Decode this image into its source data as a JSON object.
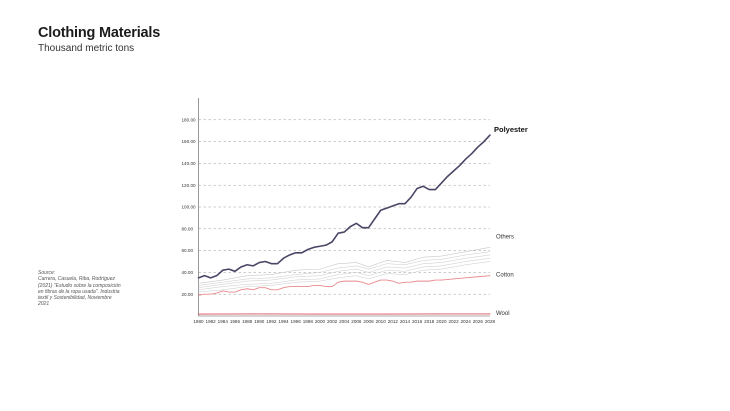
{
  "header": {
    "title": "Clothing Materials",
    "subtitle": "Thousand metric tons"
  },
  "source": {
    "lines": [
      "Source:",
      "Carrera, Casuela, Riba, Rodríguez",
      "(2021) \"Estudio sobre la composición",
      "en fibras de la ropa usada\". Industria",
      "textil y Sostenibilidad, Noviembre",
      "2021"
    ]
  },
  "colors": {
    "polyester": "#4a4766",
    "cotton": "#e8898c",
    "others": "#c9c9c9",
    "wool": "#d94a55",
    "grid": "#9a9a9a",
    "axis": "#555555"
  },
  "chart_data": {
    "type": "line",
    "title": "Clothing Materials",
    "subtitle": "Thousand metric tons",
    "xlabel": "",
    "ylabel": "",
    "ylim": [
      0,
      200
    ],
    "yticks": [
      20,
      40,
      60,
      80,
      100,
      120,
      140,
      160,
      180
    ],
    "ytick_labels": [
      "20.00",
      "40.00",
      "60.00",
      "80.00",
      "100.00",
      "120.00",
      "140.00",
      "160.00",
      "180.00"
    ],
    "xlim": [
      1980,
      2028
    ],
    "xticks": [
      1980,
      1982,
      1984,
      1986,
      1988,
      1990,
      1992,
      1994,
      1996,
      1998,
      2000,
      2002,
      2004,
      2006,
      2008,
      2010,
      2012,
      2014,
      2016,
      2018,
      2020,
      2022,
      2024,
      2026,
      2028
    ],
    "grid": true,
    "series": [
      {
        "name": "Polyester",
        "color_key": "polyester",
        "width": 1.6,
        "points": [
          [
            1980,
            35
          ],
          [
            1981,
            37
          ],
          [
            1982,
            35
          ],
          [
            1983,
            37
          ],
          [
            1984,
            42
          ],
          [
            1985,
            43
          ],
          [
            1986,
            41
          ],
          [
            1987,
            45
          ],
          [
            1988,
            47
          ],
          [
            1989,
            46
          ],
          [
            1990,
            49
          ],
          [
            1991,
            50
          ],
          [
            1992,
            48
          ],
          [
            1993,
            48
          ],
          [
            1994,
            53
          ],
          [
            1995,
            56
          ],
          [
            1996,
            58
          ],
          [
            1997,
            58
          ],
          [
            1998,
            61
          ],
          [
            1999,
            63
          ],
          [
            2000,
            64
          ],
          [
            2001,
            65
          ],
          [
            2002,
            68
          ],
          [
            2003,
            76
          ],
          [
            2004,
            77
          ],
          [
            2005,
            82
          ],
          [
            2006,
            85
          ],
          [
            2007,
            81
          ],
          [
            2008,
            81
          ],
          [
            2009,
            89
          ],
          [
            2010,
            97
          ],
          [
            2011,
            99
          ],
          [
            2012,
            101
          ],
          [
            2013,
            103
          ],
          [
            2014,
            103
          ],
          [
            2015,
            109
          ],
          [
            2016,
            117
          ],
          [
            2017,
            119
          ],
          [
            2018,
            116
          ],
          [
            2019,
            116
          ],
          [
            2020,
            122
          ],
          [
            2021,
            128
          ],
          [
            2022,
            133
          ],
          [
            2023,
            138
          ],
          [
            2024,
            144
          ],
          [
            2025,
            149
          ],
          [
            2026,
            155
          ],
          [
            2027,
            160
          ],
          [
            2028,
            166
          ]
        ]
      },
      {
        "name": "Others",
        "color_key": "others",
        "width": 0.6,
        "points": [
          [
            1980,
            30
          ],
          [
            1984,
            33
          ],
          [
            1988,
            37
          ],
          [
            1992,
            38
          ],
          [
            1996,
            42
          ],
          [
            2000,
            43
          ],
          [
            2003,
            48
          ],
          [
            2006,
            49
          ],
          [
            2008,
            45
          ],
          [
            2011,
            51
          ],
          [
            2014,
            49
          ],
          [
            2017,
            54
          ],
          [
            2020,
            55
          ],
          [
            2024,
            59
          ],
          [
            2028,
            63
          ]
        ]
      },
      {
        "name": "",
        "color_key": "others",
        "width": 0.5,
        "points": [
          [
            1980,
            28
          ],
          [
            1984,
            31
          ],
          [
            1988,
            34
          ],
          [
            1992,
            35
          ],
          [
            1996,
            38
          ],
          [
            2000,
            40
          ],
          [
            2003,
            44
          ],
          [
            2006,
            46
          ],
          [
            2008,
            43
          ],
          [
            2011,
            48
          ],
          [
            2014,
            47
          ],
          [
            2017,
            51
          ],
          [
            2020,
            52
          ],
          [
            2024,
            56
          ],
          [
            2028,
            59
          ]
        ]
      },
      {
        "name": "",
        "color_key": "others",
        "width": 0.5,
        "points": [
          [
            1980,
            26
          ],
          [
            1984,
            29
          ],
          [
            1988,
            32
          ],
          [
            1992,
            33
          ],
          [
            1996,
            36
          ],
          [
            2000,
            37
          ],
          [
            2003,
            41
          ],
          [
            2006,
            43
          ],
          [
            2008,
            40
          ],
          [
            2011,
            45
          ],
          [
            2014,
            44
          ],
          [
            2017,
            48
          ],
          [
            2020,
            49
          ],
          [
            2024,
            53
          ],
          [
            2028,
            56
          ]
        ]
      },
      {
        "name": "",
        "color_key": "others",
        "width": 0.5,
        "points": [
          [
            1980,
            24
          ],
          [
            1984,
            27
          ],
          [
            1988,
            29
          ],
          [
            1992,
            30
          ],
          [
            1996,
            33
          ],
          [
            2000,
            34
          ],
          [
            2003,
            38
          ],
          [
            2006,
            40
          ],
          [
            2008,
            37
          ],
          [
            2011,
            42
          ],
          [
            2014,
            41
          ],
          [
            2017,
            45
          ],
          [
            2020,
            46
          ],
          [
            2024,
            50
          ],
          [
            2028,
            53
          ]
        ]
      },
      {
        "name": "",
        "color_key": "others",
        "width": 0.5,
        "points": [
          [
            1980,
            22
          ],
          [
            1984,
            24
          ],
          [
            1988,
            27
          ],
          [
            1992,
            28
          ],
          [
            1996,
            31
          ],
          [
            2000,
            32
          ],
          [
            2003,
            35
          ],
          [
            2006,
            37
          ],
          [
            2008,
            34
          ],
          [
            2011,
            39
          ],
          [
            2014,
            38
          ],
          [
            2017,
            42
          ],
          [
            2020,
            43
          ],
          [
            2024,
            47
          ],
          [
            2028,
            50
          ]
        ]
      },
      {
        "name": "Cotton",
        "color_key": "cotton",
        "width": 0.9,
        "points": [
          [
            1980,
            19
          ],
          [
            1981,
            20
          ],
          [
            1982,
            20
          ],
          [
            1983,
            21
          ],
          [
            1984,
            23
          ],
          [
            1985,
            22
          ],
          [
            1986,
            22
          ],
          [
            1987,
            24
          ],
          [
            1988,
            25
          ],
          [
            1989,
            24
          ],
          [
            1990,
            26
          ],
          [
            1991,
            26
          ],
          [
            1992,
            24
          ],
          [
            1993,
            24
          ],
          [
            1994,
            26
          ],
          [
            1995,
            27
          ],
          [
            1996,
            27
          ],
          [
            1997,
            27
          ],
          [
            1998,
            27
          ],
          [
            1999,
            28
          ],
          [
            2000,
            28
          ],
          [
            2001,
            27
          ],
          [
            2002,
            27
          ],
          [
            2003,
            31
          ],
          [
            2004,
            32
          ],
          [
            2005,
            32
          ],
          [
            2006,
            32
          ],
          [
            2007,
            31
          ],
          [
            2008,
            29
          ],
          [
            2009,
            31
          ],
          [
            2010,
            33
          ],
          [
            2011,
            33
          ],
          [
            2012,
            32
          ],
          [
            2013,
            30
          ],
          [
            2014,
            31
          ],
          [
            2015,
            31
          ],
          [
            2016,
            32
          ],
          [
            2017,
            32
          ],
          [
            2018,
            32
          ],
          [
            2019,
            33
          ],
          [
            2020,
            33
          ],
          [
            2022,
            34
          ],
          [
            2024,
            35
          ],
          [
            2026,
            36
          ],
          [
            2028,
            37
          ]
        ]
      },
      {
        "name": "Wool",
        "color_key": "wool",
        "width": 0.9,
        "points": [
          [
            1980,
            1.8
          ],
          [
            1990,
            1.9
          ],
          [
            2000,
            1.8
          ],
          [
            2010,
            1.8
          ],
          [
            2020,
            1.9
          ],
          [
            2028,
            1.9
          ]
        ]
      }
    ]
  }
}
